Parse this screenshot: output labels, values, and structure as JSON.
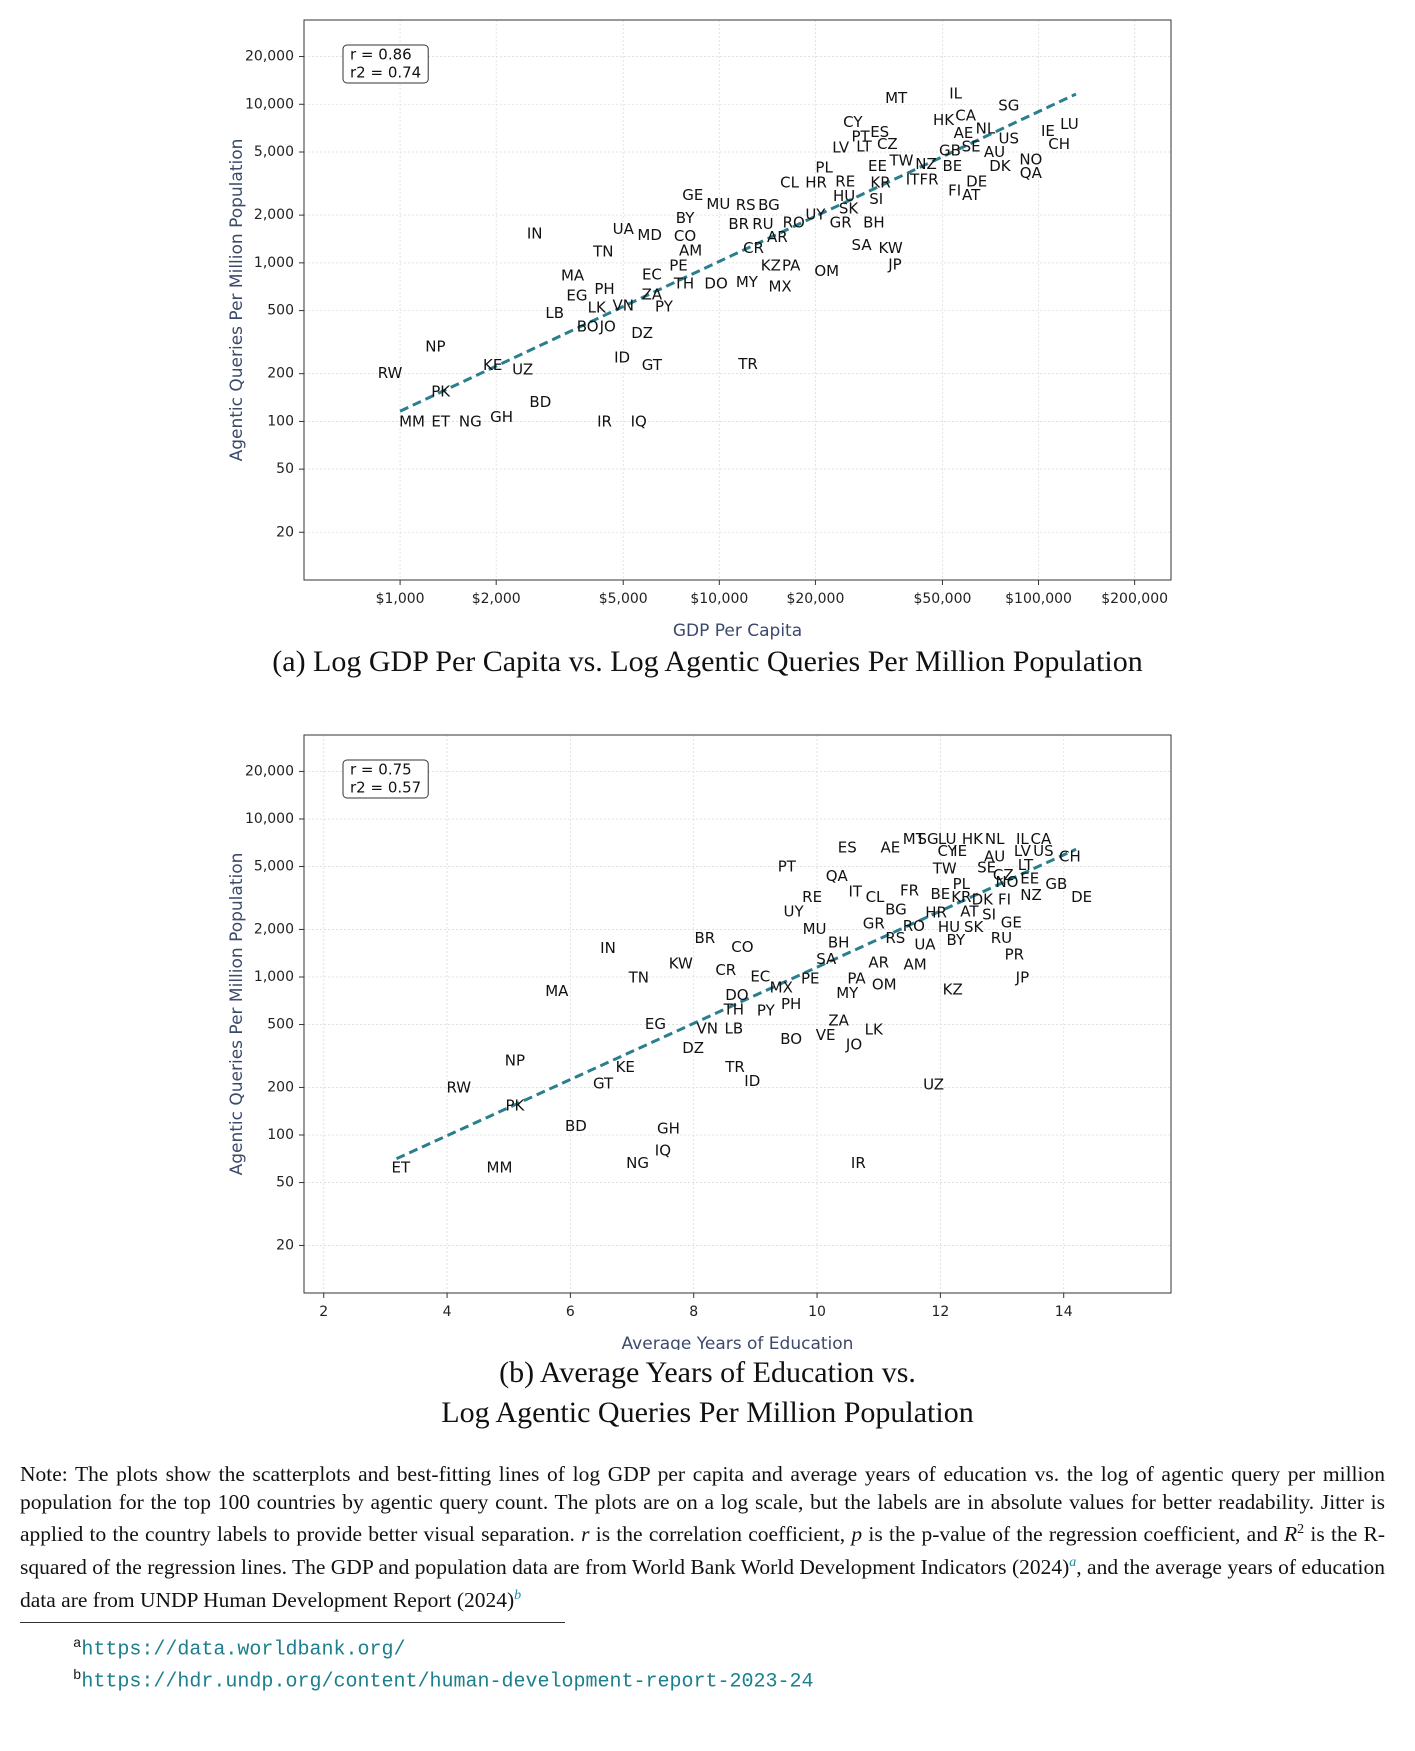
{
  "chart_data": [
    {
      "type": "scatter",
      "xlabel": "GDP Per Capita",
      "ylabel": "Agentic Queries Per Million Population",
      "caption": "(a) Log GDP Per Capita vs. Log Agentic Queries Per Million Population",
      "annotation": [
        "r = 0.86",
        "r2 = 0.74"
      ],
      "xlog": true,
      "ylog": true,
      "grid": true,
      "xlim": [
        500,
        260000
      ],
      "ylim": [
        10,
        34000
      ],
      "xticks": [
        {
          "value": 1000,
          "label": "$1,000"
        },
        {
          "value": 2000,
          "label": "$2,000"
        },
        {
          "value": 5000,
          "label": "$5,000"
        },
        {
          "value": 10000,
          "label": "$10,000"
        },
        {
          "value": 20000,
          "label": "$20,000"
        },
        {
          "value": 50000,
          "label": "$50,000"
        },
        {
          "value": 100000,
          "label": "$100,000"
        },
        {
          "value": 200000,
          "label": "$200,000"
        }
      ],
      "yticks": [
        20,
        50,
        100,
        200,
        500,
        {
          "value": 1000,
          "label": "1,000"
        },
        {
          "value": 2000,
          "label": "2,000"
        },
        {
          "value": 5000,
          "label": "5,000"
        },
        {
          "value": 10000,
          "label": "10,000"
        },
        {
          "value": 20000,
          "label": "20,000"
        }
      ],
      "trend_line": {
        "x": [
          1000,
          131000
        ],
        "y": [
          116,
          11600
        ],
        "color": "#2a7f8e"
      },
      "labels": [
        "RW",
        "NP",
        "PK",
        "MM",
        "ET",
        "NG",
        "GH",
        "KE",
        "UZ",
        "BD",
        "IN",
        "LB",
        "MA",
        "EG",
        "PH",
        "LK",
        "VN",
        "BO",
        "JO",
        "ID",
        "IR",
        "IQ",
        "DZ",
        "GT",
        "UA",
        "TN",
        "MD",
        "ZA",
        "PY",
        "EC",
        "PE",
        "TH",
        "AM",
        "CO",
        "BY",
        "GE",
        "DO",
        "MY",
        "MU",
        "BR",
        "RU",
        "RS",
        "BG",
        "CR",
        "AR",
        "KZ",
        "PA",
        "MX",
        "TR",
        "RO",
        "UY",
        "CL",
        "HR",
        "RE",
        "GR",
        "BH",
        "HU",
        "SK",
        "SI",
        "KR",
        "SA",
        "KW",
        "JP",
        "OM",
        "PL",
        "LV",
        "LT",
        "CZ",
        "PT",
        "ES",
        "CY",
        "EE",
        "TW",
        "NZ",
        "IT",
        "FR",
        "MT",
        "IL",
        "HK",
        "CA",
        "AE",
        "NL",
        "GB",
        "SE",
        "BE",
        "AU",
        "US",
        "SG",
        "DK",
        "DE",
        "FI",
        "AT",
        "NO",
        "QA",
        "IE",
        "LU",
        "CH"
      ],
      "x": [
        930,
        1290,
        1340,
        1090,
        1340,
        1660,
        2080,
        1950,
        2420,
        2750,
        2640,
        3050,
        3470,
        3580,
        4370,
        4130,
        5000,
        3870,
        4470,
        4960,
        4370,
        5590,
        5730,
        6150,
        5000,
        4330,
        6050,
        6150,
        6710,
        6150,
        7450,
        7750,
        8130,
        7810,
        7810,
        8260,
        9770,
        12200,
        9930,
        11500,
        13700,
        12100,
        14300,
        12800,
        15200,
        14500,
        16800,
        15500,
        12300,
        17100,
        20000,
        16600,
        20100,
        24800,
        24000,
        30500,
        24600,
        25400,
        31000,
        32000,
        27900,
        34400,
        35500,
        21700,
        21300,
        24000,
        28400,
        33600,
        27700,
        31800,
        26200,
        31300,
        37200,
        44400,
        40300,
        45400,
        35800,
        55000,
        50400,
        59100,
        58200,
        68200,
        52800,
        61500,
        53700,
        72800,
        80700,
        80700,
        75700,
        64000,
        54600,
        61500,
        94600,
        94600,
        107000,
        125000,
        116000
      ],
      "y": [
        200,
        295,
        153,
        99,
        99,
        99,
        106,
        225,
        211,
        132,
        1520,
        478,
        825,
        618,
        680,
        518,
        535,
        394,
        394,
        252,
        99,
        99,
        358,
        225,
        1620,
        1170,
        1490,
        628,
        526,
        838,
        953,
        738,
        1190,
        1470,
        1900,
        2660,
        738,
        750,
        2340,
        1750,
        1750,
        2300,
        2300,
        1230,
        1450,
        953,
        953,
        703,
        229,
        1780,
        2000,
        3180,
        3180,
        3230,
        1780,
        1780,
        2620,
        2190,
        2500,
        3180,
        1290,
        1230,
        969,
        880,
        3970,
        5310,
        5390,
        5570,
        6230,
        6640,
        7670,
        4040,
        4380,
        4170,
        3330,
        3330,
        10900,
        11600,
        7930,
        8450,
        6530,
        6970,
        5060,
        5390,
        4040,
        4980,
        6030,
        9770,
        4040,
        3230,
        2840,
        2660,
        4450,
        3660,
        6750,
        7430,
        5570
      ]
    },
    {
      "type": "scatter",
      "xlabel": "Average Years of Education",
      "ylabel": "Agentic Queries Per Million Population",
      "caption": [
        "(b) Average Years of Education vs.",
        "Log Agentic Queries Per Million Population"
      ],
      "annotation": [
        "r = 0.75",
        "r2 = 0.57"
      ],
      "xlog": false,
      "ylog": true,
      "grid": true,
      "xlim": [
        1.68,
        15.74
      ],
      "ylim": [
        10,
        34000
      ],
      "xticks": [
        2,
        4,
        6,
        8,
        10,
        12,
        14
      ],
      "yticks": [
        20,
        50,
        100,
        200,
        500,
        {
          "value": 1000,
          "label": "1,000"
        },
        {
          "value": 2000,
          "label": "2,000"
        },
        {
          "value": 5000,
          "label": "5,000"
        },
        {
          "value": 10000,
          "label": "10,000"
        },
        {
          "value": 20000,
          "label": "20,000"
        }
      ],
      "trend_line": {
        "x": [
          3.18,
          14.2
        ],
        "y": [
          70.8,
          6430
        ],
        "color": "#2a7f8e"
      },
      "labels": [
        "ET",
        "MM",
        "RW",
        "NP",
        "PK",
        "BD",
        "MA",
        "IN",
        "TN",
        "GT",
        "KE",
        "NG",
        "GH",
        "IQ",
        "EG",
        "DZ",
        "KW",
        "BR",
        "CO",
        "CR",
        "EC",
        "DO",
        "TH",
        "VN",
        "LB",
        "PY",
        "MX",
        "PE",
        "PH",
        "TR",
        "ID",
        "BO",
        "VE",
        "ZA",
        "JO",
        "LK",
        "PT",
        "UY",
        "RE",
        "MU",
        "QA",
        "ES",
        "AE",
        "MT",
        "SG",
        "LU",
        "HK",
        "NL",
        "IL",
        "CA",
        "CY",
        "IE",
        "AU",
        "LV",
        "US",
        "CH",
        "IT",
        "CL",
        "FR",
        "BE",
        "KR",
        "DK",
        "FI",
        "TW",
        "SE",
        "CZ",
        "LT",
        "NO",
        "EE",
        "GB",
        "NZ",
        "PL",
        "HR",
        "AT",
        "SI",
        "GE",
        "BG",
        "GR",
        "RO",
        "HU",
        "SK",
        "RS",
        "UA",
        "BY",
        "RU",
        "BH",
        "SA",
        "AR",
        "AM",
        "PR",
        "JP",
        "PA",
        "OM",
        "MY",
        "KZ",
        "UZ",
        "IR",
        "DE"
      ],
      "x": [
        3.25,
        4.85,
        4.19,
        5.1,
        5.1,
        6.09,
        5.78,
        6.61,
        7.11,
        6.53,
        6.89,
        7.09,
        7.59,
        7.5,
        7.38,
        7.99,
        7.79,
        8.18,
        8.79,
        8.52,
        9.08,
        8.7,
        8.65,
        8.22,
        8.65,
        9.17,
        9.42,
        9.89,
        9.58,
        8.67,
        8.95,
        9.58,
        10.14,
        10.35,
        10.6,
        10.92,
        9.51,
        9.62,
        9.92,
        9.96,
        10.32,
        10.49,
        11.19,
        11.57,
        11.8,
        12.11,
        12.52,
        12.88,
        13.33,
        13.63,
        12.11,
        12.32,
        12.88,
        13.33,
        13.67,
        14.1,
        10.62,
        10.94,
        11.5,
        12.0,
        12.34,
        12.68,
        13.04,
        12.07,
        12.75,
        13.02,
        13.38,
        13.08,
        13.45,
        13.88,
        13.47,
        12.34,
        11.93,
        12.47,
        12.79,
        13.15,
        11.28,
        10.92,
        11.57,
        12.14,
        12.54,
        11.27,
        11.75,
        12.25,
        12.99,
        10.35,
        10.15,
        11.0,
        11.59,
        13.2,
        13.33,
        10.64,
        11.09,
        10.49,
        12.2,
        11.89,
        10.67,
        14.29
      ],
      "y": [
        62,
        62,
        198,
        295,
        153,
        113,
        811,
        1520,
        984,
        211,
        268,
        66,
        109,
        79,
        501,
        352,
        1210,
        1750,
        1540,
        1100,
        1000,
        762,
        618,
        470,
        470,
        608,
        851,
        969,
        670,
        268,
        218,
        401,
        427,
        526,
        370,
        463,
        4980,
        2580,
        3180,
        2000,
        4310,
        6530,
        6530,
        7430,
        7430,
        7430,
        7430,
        7430,
        7430,
        7430,
        6230,
        6230,
        5750,
        6230,
        6230,
        5750,
        3440,
        3180,
        3500,
        3330,
        3180,
        3080,
        3080,
        4820,
        4900,
        4380,
        5060,
        3970,
        4170,
        3850,
        3280,
        3850,
        2540,
        2580,
        2460,
        2190,
        2660,
        2160,
        2090,
        2060,
        2060,
        1750,
        1590,
        1700,
        1750,
        1640,
        1290,
        1230,
        1190,
        1380,
        984,
        969,
        893,
        785,
        825,
        207,
        66,
        3180
      ]
    }
  ],
  "note": [
    "Note: The plots show the scatterplots and best-fitting lines of log GDP per capita and average years of education vs. the log of agentic query per million population for the top 100 countries by agentic query count. The plots are on a log scale, but the labels are in absolute values for better readability. Jitter is applied to the country labels to provide better visual separation. ",
    "r",
    " is the correlation coefficient, ",
    "p",
    " is the p-value of the regression coefficient, and ",
    "R",
    "2",
    " is the R-squared of the regression lines. The GDP and population data are from World Bank World Development Indicators (2024)",
    "a",
    ", and the average years of education data are from UNDP Human Development Report (2024)",
    "b"
  ],
  "footnotes": [
    {
      "mark": "a",
      "url": "https://data.worldbank.org/"
    },
    {
      "mark": "b",
      "url": "https://hdr.undp.org/content/human-development-report-2023-24"
    }
  ]
}
